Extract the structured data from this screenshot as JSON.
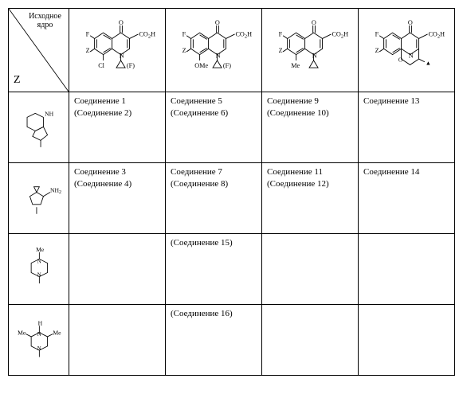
{
  "header": {
    "diag_top": "Исходное ядро",
    "diag_bottom": "Z",
    "cols": [
      {
        "sub8": "Cl",
        "n_sub": "(F)",
        "n_ring": "cyclopropyl"
      },
      {
        "sub8": "OMe",
        "n_sub": "(F)",
        "n_ring": "cyclopropyl"
      },
      {
        "sub8": "Me",
        "n_sub": "",
        "n_ring": "cyclopropyl"
      },
      {
        "sub8": "",
        "n_sub": "",
        "n_ring": "oxazine-me"
      }
    ],
    "core_text": {
      "F": "F",
      "Z": "Z",
      "CO2H": "CO",
      "CO2H_sub": "2",
      "CO2H_tail": "H",
      "O": "O",
      "N": "N"
    }
  },
  "row_labels": [
    {
      "type": "octahydropyrrolopyridine",
      "text_nh": "NH"
    },
    {
      "type": "spiro-aminopyrrolidine",
      "text_nh2": "NH",
      "text_nh2_sub": "2"
    },
    {
      "type": "n-me-piperazine",
      "text_me": "Me"
    },
    {
      "type": "dime-piperazine",
      "text_h": "H",
      "text_me": "Me"
    }
  ],
  "cells": [
    [
      {
        "l1": "Соединение 1",
        "l2": "(Соединение 2)"
      },
      {
        "l1": "Соединение 5",
        "l2": "(Соединение 6)"
      },
      {
        "l1": "Соединение 9",
        "l2": "(Соединение 10)"
      },
      {
        "l1": "Соединение 13",
        "l2": ""
      }
    ],
    [
      {
        "l1": "Соединение 3",
        "l2": "(Соединение 4)"
      },
      {
        "l1": "Соединение 7",
        "l2": "(Соединение 8)"
      },
      {
        "l1": "Соединение 11",
        "l2": "(Соединение 12)"
      },
      {
        "l1": "Соединение 14",
        "l2": ""
      }
    ],
    [
      {
        "l1": "",
        "l2": ""
      },
      {
        "l1": "(Соединение 15)",
        "l2": ""
      },
      {
        "l1": "",
        "l2": ""
      },
      {
        "l1": "",
        "l2": ""
      }
    ],
    [
      {
        "l1": "",
        "l2": ""
      },
      {
        "l1": "(Соединение 16)",
        "l2": ""
      },
      {
        "l1": "",
        "l2": ""
      },
      {
        "l1": "",
        "l2": ""
      }
    ]
  ],
  "style": {
    "stroke": "#000000",
    "stroke_width": 1,
    "font_size_struct": 9
  }
}
